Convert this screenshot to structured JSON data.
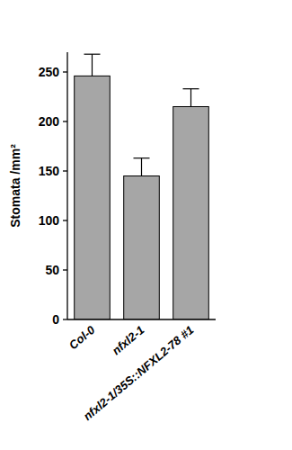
{
  "chart_data": {
    "type": "bar",
    "y_label": "Stomata /mm²",
    "categories": [
      "Col-0",
      "nfxl2-1",
      "nfxl2-1/35S::NFXL2-78 #1"
    ],
    "values": [
      246,
      145,
      215
    ],
    "errors": [
      22,
      18,
      18
    ],
    "color": "#a6a6a6",
    "ylim": [
      0,
      270
    ],
    "yticks": [
      0,
      50,
      100,
      150,
      200,
      250
    ],
    "grid": false
  }
}
